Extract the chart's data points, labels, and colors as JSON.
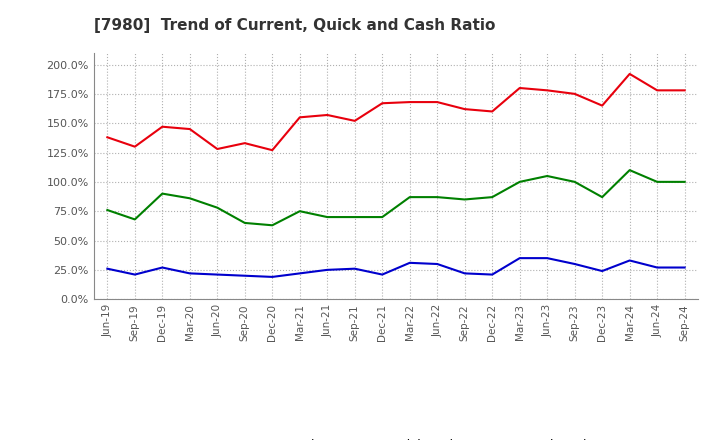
{
  "title": "[7980]  Trend of Current, Quick and Cash Ratio",
  "x_labels": [
    "Jun-19",
    "Sep-19",
    "Dec-19",
    "Mar-20",
    "Jun-20",
    "Sep-20",
    "Dec-20",
    "Mar-21",
    "Jun-21",
    "Sep-21",
    "Dec-21",
    "Mar-22",
    "Jun-22",
    "Sep-22",
    "Dec-22",
    "Mar-23",
    "Jun-23",
    "Sep-23",
    "Dec-23",
    "Mar-24",
    "Jun-24",
    "Sep-24"
  ],
  "current_ratio": [
    138,
    130,
    147,
    145,
    128,
    133,
    127,
    155,
    157,
    152,
    167,
    168,
    168,
    162,
    160,
    180,
    178,
    175,
    165,
    192,
    178,
    178
  ],
  "quick_ratio": [
    76,
    68,
    90,
    86,
    78,
    65,
    63,
    75,
    70,
    70,
    70,
    87,
    87,
    85,
    87,
    100,
    105,
    100,
    87,
    110,
    100,
    100
  ],
  "cash_ratio": [
    26,
    21,
    27,
    22,
    21,
    20,
    19,
    22,
    25,
    26,
    21,
    31,
    30,
    22,
    21,
    35,
    35,
    30,
    24,
    33,
    27,
    27
  ],
  "current_color": "#e8000d",
  "quick_color": "#008000",
  "cash_color": "#0000cd",
  "background_color": "#ffffff",
  "plot_bg_color": "#ffffff",
  "grid_color": "#b0b0b0",
  "ylim": [
    0,
    210
  ],
  "yticks": [
    0,
    25,
    50,
    75,
    100,
    125,
    150,
    175,
    200
  ],
  "ytick_labels": [
    "0.0%",
    "25.0%",
    "50.0%",
    "75.0%",
    "100.0%",
    "125.0%",
    "150.0%",
    "175.0%",
    "200.0%"
  ],
  "legend_labels": [
    "Current Ratio",
    "Quick Ratio",
    "Cash Ratio"
  ]
}
